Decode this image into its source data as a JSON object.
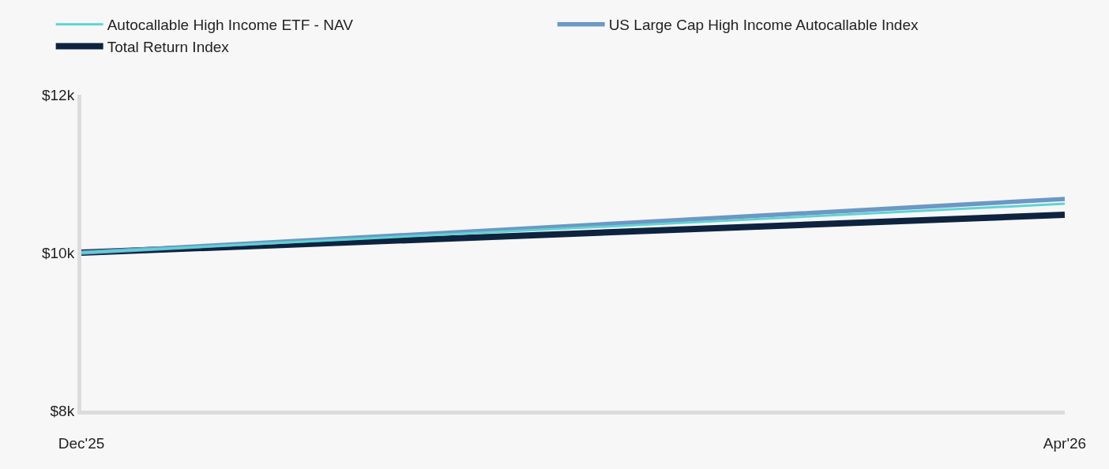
{
  "chart_data": {
    "type": "line",
    "categories": [
      "Dec'25",
      "Apr'26"
    ],
    "series": [
      {
        "name": "Autocallable High Income ETF - NAV",
        "color": "#5fd3d3",
        "values": [
          10000,
          10620
        ]
      },
      {
        "name": "US Large Cap High Income Autocallable Index",
        "color": "#6b98c4",
        "values": [
          10000,
          10680
        ]
      },
      {
        "name": "Total Return Index",
        "color": "#0e2340",
        "values": [
          10000,
          10480
        ]
      }
    ],
    "ylim": [
      8000,
      12000
    ],
    "yticks": [
      {
        "value": 8000,
        "label": "$8k"
      },
      {
        "value": 10000,
        "label": "$10k"
      },
      {
        "value": 12000,
        "label": "$12k"
      }
    ],
    "legend": "top left",
    "marker": "none",
    "line_style": "solid"
  }
}
